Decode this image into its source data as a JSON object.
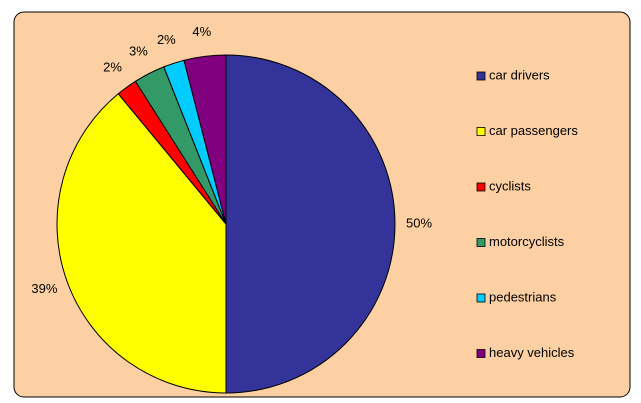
{
  "chart_data": {
    "type": "pie",
    "categories": [
      "car drivers",
      "car passengers",
      "cyclists",
      "motorcyclists",
      "pedestrians",
      "heavy vehicles"
    ],
    "values": [
      50,
      39,
      2,
      3,
      2,
      4
    ],
    "value_labels": [
      "50%",
      "39%",
      "2%",
      "3%",
      "2%",
      "4%"
    ],
    "colors": [
      "#333399",
      "#ffff00",
      "#ff0000",
      "#339966",
      "#00ccff",
      "#800080"
    ],
    "background": "#fcd0a2",
    "legend": "right"
  }
}
